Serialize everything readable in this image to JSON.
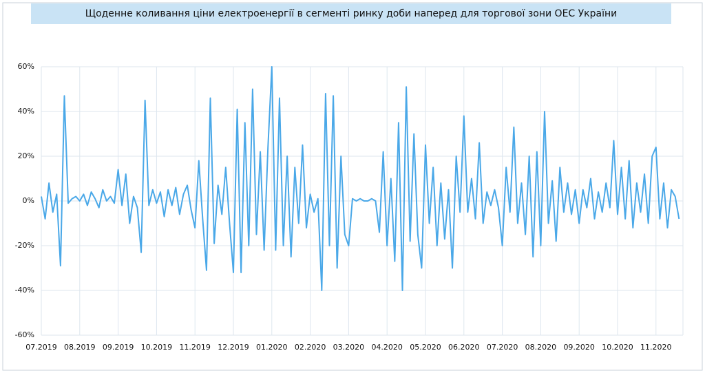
{
  "chart_data": {
    "type": "line",
    "title": "Щоденне коливання ціни електроенергії в сегменті ринку доби наперед для торгової зони ОЕС України",
    "categories": [
      "07.2019",
      null,
      null,
      null,
      null,
      null,
      null,
      null,
      null,
      null,
      "08.2019",
      null,
      null,
      null,
      null,
      null,
      null,
      null,
      null,
      null,
      "09.2019",
      null,
      null,
      null,
      null,
      null,
      null,
      null,
      null,
      null,
      "10.2019",
      null,
      null,
      null,
      null,
      null,
      null,
      null,
      null,
      null,
      "11.2019",
      null,
      null,
      null,
      null,
      null,
      null,
      null,
      null,
      null,
      "12.2019",
      null,
      null,
      null,
      null,
      null,
      null,
      null,
      null,
      null,
      "01.2020",
      null,
      null,
      null,
      null,
      null,
      null,
      null,
      null,
      null,
      "02.2020",
      null,
      null,
      null,
      null,
      null,
      null,
      null,
      null,
      null,
      "03.2020",
      null,
      null,
      null,
      null,
      null,
      null,
      null,
      null,
      null,
      "04.2020",
      null,
      null,
      null,
      null,
      null,
      null,
      null,
      null,
      null,
      "05.2020",
      null,
      null,
      null,
      null,
      null,
      null,
      null,
      null,
      null,
      "06.2020",
      null,
      null,
      null,
      null,
      null,
      null,
      null,
      null,
      null,
      "07.2020",
      null,
      null,
      null,
      null,
      null,
      null,
      null,
      null,
      null,
      "08.2020",
      null,
      null,
      null,
      null,
      null,
      null,
      null,
      null,
      null,
      "09.2020",
      null,
      null,
      null,
      null,
      null,
      null,
      null,
      null,
      null,
      "10.2020",
      null,
      null,
      null,
      null,
      null,
      null,
      null,
      null,
      null,
      "11.2020",
      null,
      null,
      null,
      null,
      null,
      null
    ],
    "series": [
      {
        "color": "#4aa8e8",
        "values": [
          2,
          -8,
          8,
          -5,
          3,
          -29,
          47,
          -1,
          1,
          2,
          0,
          3,
          -2,
          4,
          1,
          -3,
          5,
          0,
          2,
          -1,
          14,
          -2,
          12,
          -10,
          2,
          -3,
          -23,
          45,
          -2,
          5,
          -1,
          4,
          -7,
          5,
          -2,
          6,
          -6,
          3,
          7,
          -4,
          -12,
          18,
          -8,
          -31,
          46,
          -19,
          7,
          -6,
          15,
          -10,
          -32,
          41,
          -32,
          35,
          -20,
          50,
          -15,
          22,
          -22,
          24,
          60,
          -22,
          46,
          -20,
          20,
          -25,
          15,
          -10,
          25,
          -12,
          3,
          -5,
          1,
          -40,
          48,
          -20,
          47,
          -30,
          20,
          -15,
          -20,
          1,
          0,
          1,
          0,
          0,
          1,
          0,
          -14,
          22,
          -20,
          10,
          -27,
          35,
          -40,
          51,
          -18,
          30,
          -15,
          -30,
          25,
          -10,
          15,
          -20,
          8,
          -17,
          5,
          -30,
          20,
          -5,
          38,
          -5,
          10,
          -8,
          26,
          -10,
          4,
          -2,
          5,
          -3,
          -20,
          15,
          -5,
          33,
          -10,
          8,
          -15,
          20,
          -25,
          22,
          -20,
          40,
          -10,
          9,
          -18,
          15,
          -5,
          8,
          -6,
          5,
          -10,
          5,
          -3,
          10,
          -8,
          4,
          -5,
          8,
          -3,
          27,
          -6,
          15,
          -8,
          18,
          -12,
          8,
          -5,
          12,
          -10,
          20,
          24,
          -8,
          8,
          -12,
          5,
          2,
          -8
        ]
      }
    ],
    "ylim": [
      -60,
      60
    ],
    "yticks": [
      {
        "value": -60,
        "label": "-60%"
      },
      {
        "value": -40,
        "label": "-40%"
      },
      {
        "value": -20,
        "label": "-20%"
      },
      {
        "value": 0,
        "label": "0%"
      },
      {
        "value": 20,
        "label": "20%"
      },
      {
        "value": 40,
        "label": "40%"
      },
      {
        "value": 60,
        "label": "60%"
      }
    ],
    "grid": true
  }
}
